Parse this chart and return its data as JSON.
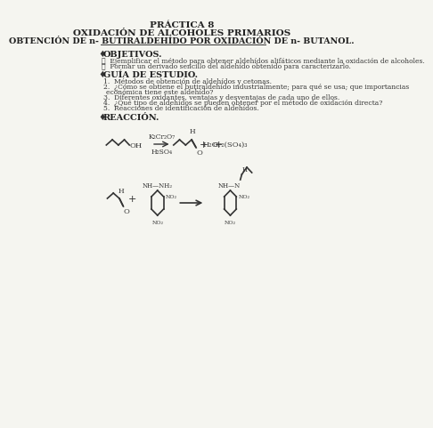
{
  "title1": "PRÁCTICA 8",
  "title2": "OXIDACIÓN DE ALCOHOLES PRIMARIOS",
  "title3": "OBTENCIÓN DE n- BUTIRALDEHÍDO POR OXIDACIÓN DE n- BUTANOL.",
  "section1": "♥  OBJETIVOS.",
  "obj1": "✓  Ejemplificar el método para obtener aldehídos alifáticos mediante la oxidación de alcoholes.",
  "obj2": "✓  Formar un derivado sencillo del aldehído obtenido para caracterizarlo.",
  "section2": "♥  GUÍA DE ESTUDIO.",
  "study1": "1.  Métodos de obtención de aldehídos y cetonas.",
  "study2": "2.  ¿Cómo se obtiene el butiraldehído industrialmente; para qué se usa; que importancias",
  "study2b": "     económica tiene este aldehído?",
  "study3": "3.  Diferentes oxidantes, ventajas y desventajas de cada uno de ellos.",
  "study4": "4.  ¿Qué tipo de aldehídos se pueden obtener por el método de oxidación directa?",
  "study5": "5.  Reacciones de identificación de aldehídos.",
  "section3": "♥  REACCIÓN.",
  "bg_color": "#f5f5f0",
  "text_color": "#333333"
}
